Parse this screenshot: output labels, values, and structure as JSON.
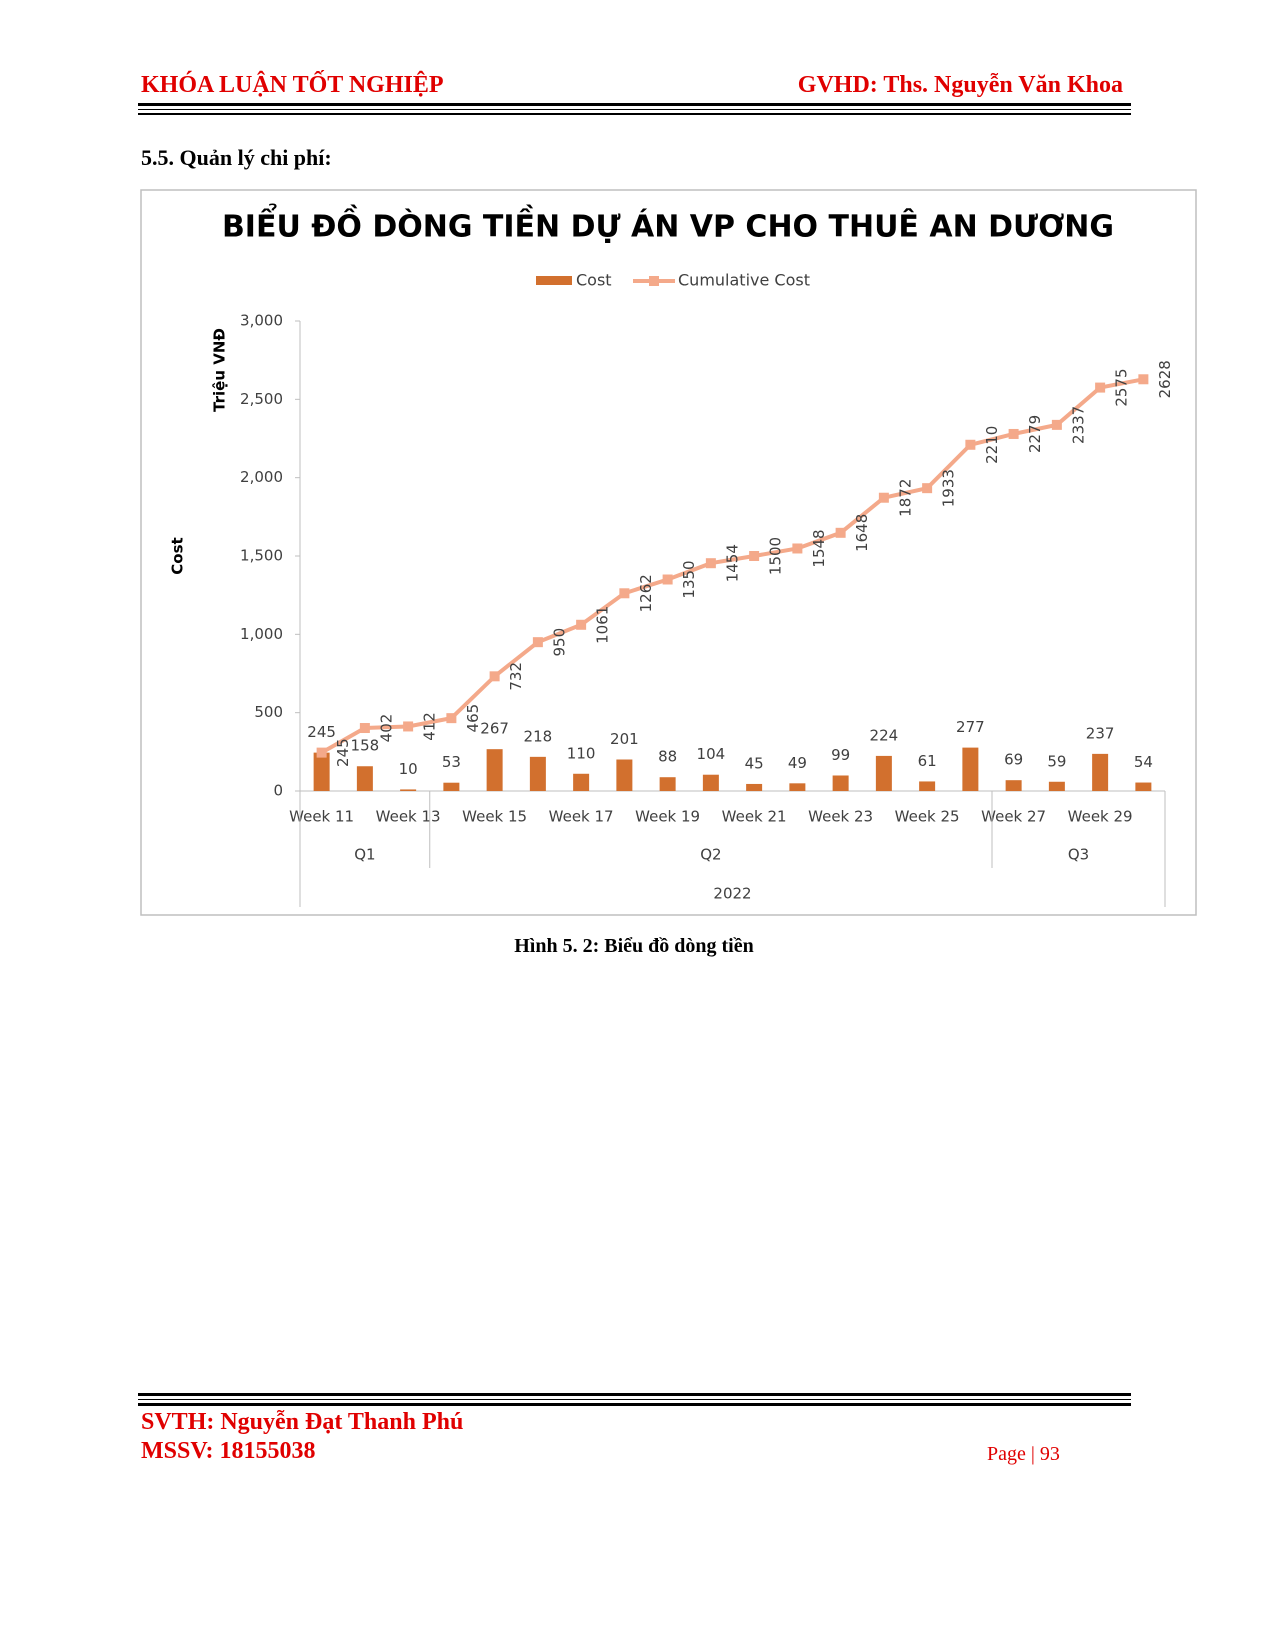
{
  "header": {
    "left": "KHÓA LUẬN TỐT NGHIỆP",
    "right": "GVHD: Ths. Nguyễn Văn Khoa"
  },
  "section_title": "5.5. Quản lý chi phí:",
  "caption": "Hình 5. 2: Biểu đồ dòng tiền",
  "footer": {
    "student": "SVTH: Nguyễn Đạt Thanh Phú",
    "id": "MSSV: 18155038",
    "page_label": "Page",
    "page_number": "93"
  },
  "chart_data": {
    "type": "bar-line",
    "title": "BIỂU ĐỒ DÒNG TIỀN DỰ ÁN VP CHO THUÊ AN DƯƠNG",
    "y_axis_title": "Cost",
    "y_unit": "Triệu VNĐ",
    "categories": [
      "Week 11",
      null,
      "Week 13",
      null,
      "Week 15",
      null,
      "Week 17",
      null,
      "Week 19",
      null,
      "Week 21",
      null,
      "Week 23",
      null,
      "Week 25",
      null,
      "Week 27",
      null,
      "Week 29",
      null
    ],
    "quarters": [
      "Q1",
      "Q1",
      "Q1",
      "Q2",
      "Q2",
      "Q2",
      "Q2",
      "Q2",
      "Q2",
      "Q2",
      "Q2",
      "Q2",
      "Q2",
      "Q2",
      "Q2",
      "Q2",
      "Q3",
      "Q3",
      "Q3",
      "Q3"
    ],
    "year": "2022",
    "series": [
      {
        "name": "Cost",
        "type": "bar",
        "color": "#d2702e",
        "values": [
          245,
          158,
          10,
          53,
          267,
          218,
          110,
          201,
          88,
          104,
          45,
          49,
          99,
          224,
          61,
          277,
          69,
          59,
          237,
          54
        ]
      },
      {
        "name": "Cumulative Cost",
        "type": "line",
        "color": "#f4a98a",
        "values": [
          245,
          402,
          412,
          465,
          732,
          950,
          1061,
          1262,
          1350,
          1454,
          1500,
          1548,
          1648,
          1872,
          1933,
          2210,
          2279,
          2337,
          2575,
          2628
        ]
      }
    ],
    "ylim": [
      0,
      3000
    ],
    "yticks": [
      0,
      {
        "value": 500,
        "label": "500"
      },
      {
        "value": 1000,
        "label": "1,000"
      },
      {
        "value": 1500,
        "label": "1,500"
      },
      {
        "value": 2000,
        "label": "2,000"
      },
      {
        "value": 2500,
        "label": "2,500"
      },
      {
        "value": 3000,
        "label": "3,000"
      }
    ],
    "grid": false,
    "legend": "top"
  }
}
